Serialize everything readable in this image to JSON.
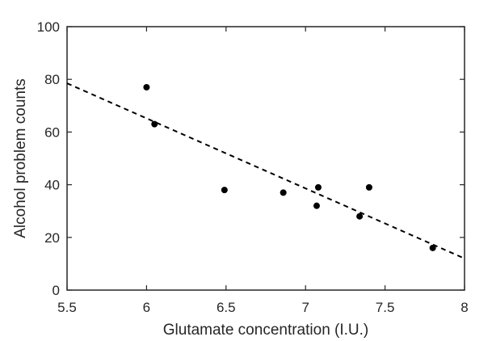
{
  "chart_data": {
    "type": "scatter",
    "title": "",
    "xlabel": "Glutamate concentration (I.U.)",
    "ylabel": "Alcohol problem counts",
    "xlim": [
      5.5,
      8
    ],
    "ylim": [
      0,
      100
    ],
    "xticks": [
      5.5,
      6,
      6.5,
      7,
      7.5,
      8
    ],
    "xtick_labels": [
      "5.5",
      "6",
      "6.5",
      "7",
      "7.5",
      "8"
    ],
    "yticks": [
      0,
      20,
      40,
      60,
      80,
      100
    ],
    "ytick_labels": [
      "0",
      "20",
      "40",
      "60",
      "80",
      "100"
    ],
    "grid": false,
    "legend": "none",
    "series": [
      {
        "x": [
          6.0,
          6.05,
          6.49,
          6.86,
          7.07,
          7.08,
          7.34,
          7.4,
          7.8
        ],
        "y": [
          77,
          63,
          38,
          37,
          32,
          39,
          28,
          39,
          16
        ],
        "marker": "filled-circle",
        "color": "#000000"
      }
    ],
    "trend_line": {
      "style": "dashed",
      "color": "#000000",
      "x": [
        5.5,
        8
      ],
      "y": [
        78.5,
        12
      ]
    }
  }
}
